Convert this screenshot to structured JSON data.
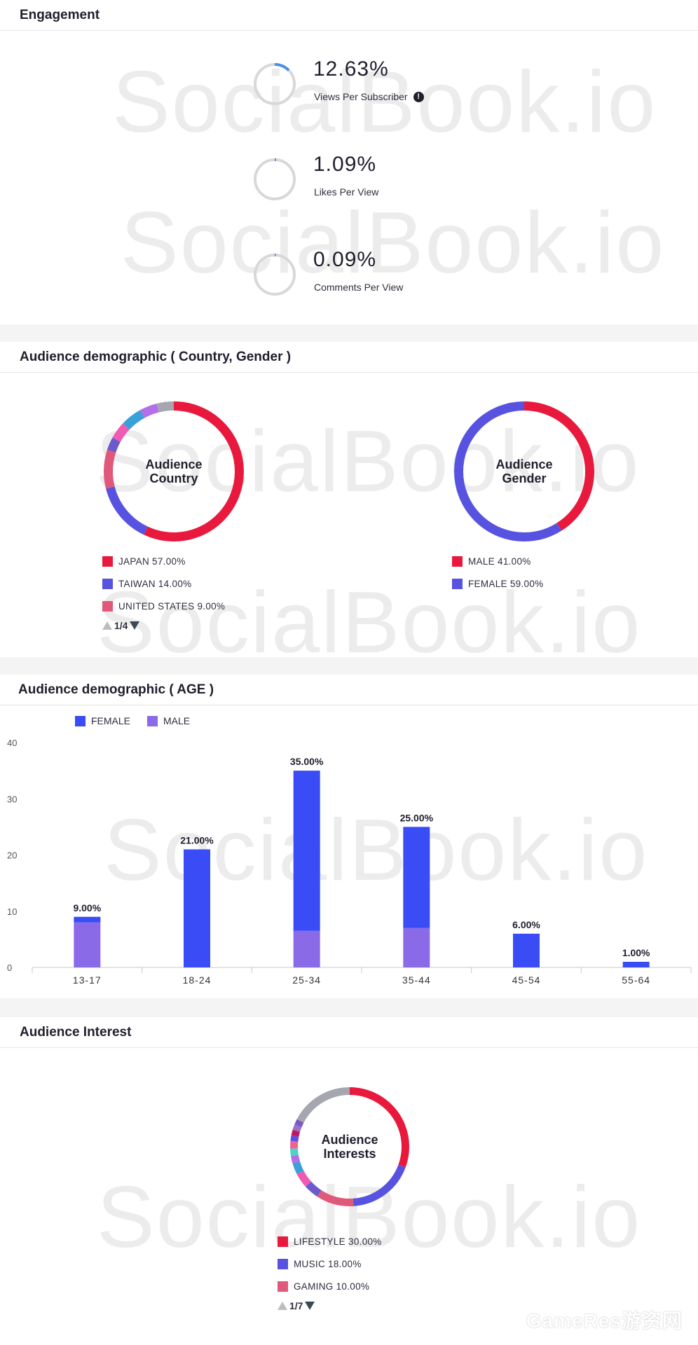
{
  "watermark_text": "SocialBook.io",
  "brand_mark": "GameRes游资网",
  "engagement": {
    "title": "Engagement",
    "metrics": [
      {
        "value": "12.63%",
        "label": "Views Per Subscriber",
        "fraction": 0.1263,
        "info_icon": "info-icon"
      },
      {
        "value": "1.09%",
        "label": "Likes Per View",
        "fraction": 0.0109
      },
      {
        "value": "0.09%",
        "label": "Comments Per View",
        "fraction": 0.0009
      }
    ],
    "ring_color": "#4a90e2",
    "track_color": "#d8d8d8"
  },
  "demographic": {
    "title": "Audience demographic ( Country, Gender )",
    "country": {
      "center_line1": "Audience",
      "center_line2": "Country",
      "segments": [
        {
          "name": "JAPAN",
          "value": 57.0,
          "color": "#e8193c"
        },
        {
          "name": "TAIWAN",
          "value": 14.0,
          "color": "#5753e0"
        },
        {
          "name": "UNITED STATES",
          "value": 9.0,
          "color": "#e0587a"
        },
        {
          "name": "",
          "value": 3.0,
          "color": "#6a5acd"
        },
        {
          "name": "",
          "value": 4.0,
          "color": "#ef5ab4"
        },
        {
          "name": "",
          "value": 5.0,
          "color": "#3aa0d8"
        },
        {
          "name": "",
          "value": 4.0,
          "color": "#b36ee8"
        },
        {
          "name": "",
          "value": 4.0,
          "color": "#a6a6b0"
        }
      ],
      "legend": [
        {
          "label": "JAPAN 57.00%",
          "color": "#e8193c"
        },
        {
          "label": "TAIWAN 14.00%",
          "color": "#5753e0"
        },
        {
          "label": "UNITED STATES 9.00%",
          "color": "#e0587a"
        }
      ],
      "pager": "1/4"
    },
    "gender": {
      "center_line1": "Audience",
      "center_line2": "Gender",
      "segments": [
        {
          "name": "MALE",
          "value": 41.0,
          "color": "#e8193c"
        },
        {
          "name": "FEMALE",
          "value": 59.0,
          "color": "#5753e0"
        }
      ],
      "legend": [
        {
          "label": "MALE 41.00%",
          "color": "#e8193c"
        },
        {
          "label": "FEMALE 59.00%",
          "color": "#5753e0"
        }
      ]
    }
  },
  "age": {
    "title": "Audience demographic ( AGE )",
    "legend": [
      {
        "label": "FEMALE",
        "color": "#3a4cf5"
      },
      {
        "label": "MALE",
        "color": "#8b6ae8"
      }
    ]
  },
  "chart_data": {
    "type": "bar",
    "categories": [
      "13-17",
      "18-24",
      "25-34",
      "35-44",
      "45-54",
      "55-64"
    ],
    "series": [
      {
        "name": "MALE",
        "values": [
          8,
          0,
          6.5,
          7,
          0,
          0
        ],
        "color": "#8b6ae8"
      },
      {
        "name": "FEMALE",
        "values": [
          1,
          21,
          28.5,
          18,
          6,
          1
        ],
        "color": "#3a4cf5"
      }
    ],
    "totals": [
      9,
      21,
      35,
      25,
      6,
      1
    ],
    "data_labels": [
      "9.00%",
      "21.00%",
      "35.00%",
      "25.00%",
      "6.00%",
      "1.00%"
    ],
    "yticks": [
      0,
      10,
      20,
      30,
      40
    ],
    "ylim": [
      0,
      40
    ],
    "stacked": true,
    "legend_position": "top-left"
  },
  "interest": {
    "title": "Audience Interest",
    "center_line1": "Audience",
    "center_line2": "Interests",
    "segments": [
      {
        "name": "LIFESTYLE",
        "value": 30.0,
        "color": "#e8193c"
      },
      {
        "name": "MUSIC",
        "value": 18.0,
        "color": "#5753e0"
      },
      {
        "name": "GAMING",
        "value": 10.0,
        "color": "#e0587a"
      },
      {
        "name": "",
        "value": 4.0,
        "color": "#6a5acd"
      },
      {
        "name": "",
        "value": 4.0,
        "color": "#ef5ab4"
      },
      {
        "name": "",
        "value": 3.0,
        "color": "#3aa0d8"
      },
      {
        "name": "",
        "value": 2.0,
        "color": "#b36ee8"
      },
      {
        "name": "",
        "value": 2.0,
        "color": "#4fd1c5"
      },
      {
        "name": "",
        "value": 2.0,
        "color": "#f06292"
      },
      {
        "name": "",
        "value": 1.5,
        "color": "#5b4ee0"
      },
      {
        "name": "",
        "value": 1.5,
        "color": "#c2185b"
      },
      {
        "name": "",
        "value": 1.5,
        "color": "#9575cd"
      },
      {
        "name": "",
        "value": 1.5,
        "color": "#7e57c2"
      },
      {
        "name": "",
        "value": 17.0,
        "color": "#a6a6b0"
      }
    ],
    "legend": [
      {
        "label": "LIFESTYLE 30.00%",
        "color": "#e8193c"
      },
      {
        "label": "MUSIC 18.00%",
        "color": "#5753e0"
      },
      {
        "label": "GAMING 10.00%",
        "color": "#e0587a"
      }
    ],
    "pager": "1/7"
  }
}
